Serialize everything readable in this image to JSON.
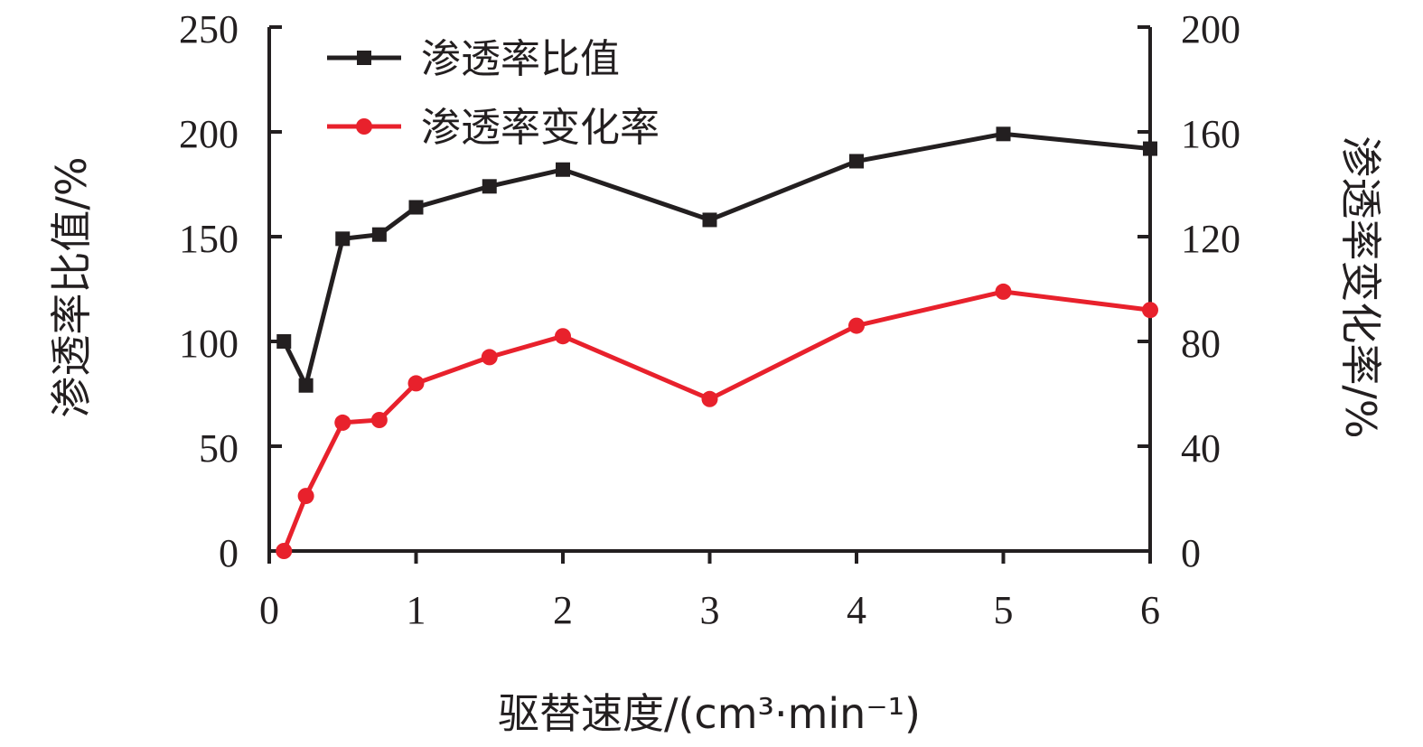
{
  "chart_data": {
    "type": "line",
    "xlabel": "驱替速度/(cm³·min⁻¹)",
    "ylabel_left": "渗透率比值/%",
    "ylabel_right": "渗透率变化率/%",
    "xlim": [
      0,
      6
    ],
    "ylim_left": [
      0,
      250
    ],
    "ylim_right": [
      0,
      200
    ],
    "x_ticks": [
      "0",
      "1",
      "2",
      "3",
      "4",
      "5",
      "6"
    ],
    "y_left_ticks": [
      "0",
      "50",
      "100",
      "150",
      "200",
      "250"
    ],
    "y_right_ticks": [
      "0",
      "40",
      "80",
      "120",
      "160",
      "200"
    ],
    "grid": false,
    "legend_position": "top-left",
    "series": [
      {
        "name": "渗透率比值",
        "axis": "left",
        "color": "#231f20",
        "marker": "square",
        "x": [
          0.1,
          0.25,
          0.5,
          0.75,
          1,
          1.5,
          2,
          3,
          4,
          5,
          6
        ],
        "values": [
          100,
          79,
          149,
          151,
          164,
          174,
          182,
          158,
          186,
          199,
          192
        ]
      },
      {
        "name": "渗透率变化率",
        "axis": "right",
        "color": "#e8212c",
        "marker": "circle",
        "x": [
          0.1,
          0.25,
          0.5,
          0.75,
          1,
          1.5,
          2,
          3,
          4,
          5,
          6
        ],
        "values": [
          0,
          21,
          49,
          50,
          64,
          74,
          82,
          58,
          86,
          99,
          92
        ]
      }
    ]
  }
}
